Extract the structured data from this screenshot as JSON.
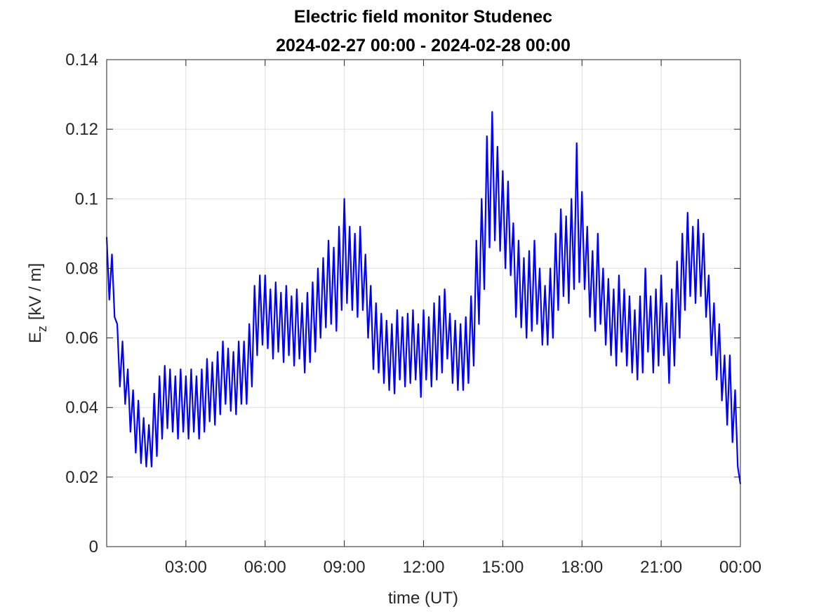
{
  "chart_data": {
    "type": "line",
    "title": "Electric field monitor Studenec",
    "subtitle": "2024-02-27 00:00 - 2024-02-28 00:00",
    "xlabel": "time (UT)",
    "ylabel": [
      "E",
      "z",
      "[kV / m]"
    ],
    "xlim": [
      0,
      24
    ],
    "ylim": [
      0,
      0.14
    ],
    "xticks": [
      {
        "value": 3,
        "label": "03:00"
      },
      {
        "value": 6,
        "label": "06:00"
      },
      {
        "value": 9,
        "label": "09:00"
      },
      {
        "value": 12,
        "label": "12:00"
      },
      {
        "value": 15,
        "label": "15:00"
      },
      {
        "value": 18,
        "label": "18:00"
      },
      {
        "value": 21,
        "label": "21:00"
      },
      {
        "value": 24,
        "label": "00:00"
      }
    ],
    "yticks": [
      0,
      0.02,
      0.04,
      0.06,
      0.08,
      0.1,
      0.12,
      0.14
    ],
    "grid": true,
    "x": [
      0,
      0.1,
      0.2,
      0.3,
      0.4,
      0.5,
      0.6,
      0.7,
      0.8,
      0.9,
      1,
      1.1,
      1.2,
      1.3,
      1.4,
      1.5,
      1.6,
      1.7,
      1.8,
      1.9,
      2,
      2.1,
      2.2,
      2.3,
      2.4,
      2.5,
      2.6,
      2.7,
      2.8,
      2.9,
      3,
      3.1,
      3.2,
      3.3,
      3.4,
      3.5,
      3.6,
      3.7,
      3.8,
      3.9,
      4,
      4.1,
      4.2,
      4.3,
      4.4,
      4.5,
      4.6,
      4.7,
      4.8,
      4.9,
      5,
      5.1,
      5.2,
      5.3,
      5.4,
      5.5,
      5.6,
      5.7,
      5.8,
      5.9,
      6,
      6.1,
      6.2,
      6.3,
      6.4,
      6.5,
      6.6,
      6.7,
      6.8,
      6.9,
      7,
      7.1,
      7.2,
      7.3,
      7.4,
      7.5,
      7.6,
      7.7,
      7.8,
      7.9,
      8,
      8.1,
      8.2,
      8.3,
      8.4,
      8.5,
      8.6,
      8.7,
      8.8,
      8.9,
      9,
      9.1,
      9.2,
      9.3,
      9.4,
      9.5,
      9.6,
      9.7,
      9.8,
      9.9,
      10,
      10.1,
      10.2,
      10.3,
      10.4,
      10.5,
      10.6,
      10.7,
      10.8,
      10.9,
      11,
      11.1,
      11.2,
      11.3,
      11.4,
      11.5,
      11.6,
      11.7,
      11.8,
      11.9,
      12,
      12.1,
      12.2,
      12.3,
      12.4,
      12.5,
      12.6,
      12.7,
      12.8,
      12.9,
      13,
      13.1,
      13.2,
      13.3,
      13.4,
      13.5,
      13.6,
      13.7,
      13.8,
      13.9,
      14,
      14.1,
      14.2,
      14.3,
      14.4,
      14.5,
      14.6,
      14.7,
      14.8,
      14.9,
      15,
      15.1,
      15.2,
      15.3,
      15.4,
      15.5,
      15.6,
      15.7,
      15.8,
      15.9,
      16,
      16.1,
      16.2,
      16.3,
      16.4,
      16.5,
      16.6,
      16.7,
      16.8,
      16.9,
      17,
      17.1,
      17.2,
      17.3,
      17.4,
      17.5,
      17.6,
      17.7,
      17.8,
      17.9,
      18,
      18.1,
      18.2,
      18.3,
      18.4,
      18.5,
      18.6,
      18.7,
      18.8,
      18.9,
      19,
      19.1,
      19.2,
      19.3,
      19.4,
      19.5,
      19.6,
      19.7,
      19.8,
      19.9,
      20,
      20.1,
      20.2,
      20.3,
      20.4,
      20.5,
      20.6,
      20.7,
      20.8,
      20.9,
      21,
      21.1,
      21.2,
      21.3,
      21.4,
      21.5,
      21.6,
      21.7,
      21.8,
      21.9,
      22,
      22.1,
      22.2,
      22.3,
      22.4,
      22.5,
      22.6,
      22.7,
      22.8,
      22.9,
      23,
      23.1,
      23.2,
      23.3,
      23.4,
      23.5,
      23.6,
      23.7,
      23.8,
      23.9,
      24
    ],
    "series": [
      {
        "color": "#0000ff",
        "values": [
          0.089,
          0.071,
          0.084,
          0.066,
          0.064,
          0.046,
          0.059,
          0.041,
          0.051,
          0.033,
          0.045,
          0.027,
          0.042,
          0.024,
          0.037,
          0.023,
          0.035,
          0.023,
          0.044,
          0.026,
          0.049,
          0.031,
          0.052,
          0.034,
          0.051,
          0.033,
          0.049,
          0.031,
          0.051,
          0.033,
          0.049,
          0.031,
          0.051,
          0.033,
          0.049,
          0.031,
          0.051,
          0.033,
          0.054,
          0.036,
          0.053,
          0.035,
          0.056,
          0.038,
          0.059,
          0.041,
          0.057,
          0.039,
          0.056,
          0.038,
          0.059,
          0.041,
          0.059,
          0.041,
          0.064,
          0.046,
          0.075,
          0.055,
          0.078,
          0.058,
          0.078,
          0.057,
          0.074,
          0.054,
          0.076,
          0.056,
          0.073,
          0.053,
          0.075,
          0.055,
          0.072,
          0.052,
          0.074,
          0.054,
          0.07,
          0.05,
          0.073,
          0.053,
          0.076,
          0.056,
          0.08,
          0.06,
          0.083,
          0.063,
          0.088,
          0.064,
          0.086,
          0.062,
          0.092,
          0.068,
          0.1,
          0.07,
          0.092,
          0.068,
          0.09,
          0.066,
          0.092,
          0.068,
          0.084,
          0.06,
          0.075,
          0.051,
          0.07,
          0.05,
          0.067,
          0.047,
          0.065,
          0.045,
          0.064,
          0.044,
          0.068,
          0.048,
          0.066,
          0.046,
          0.067,
          0.047,
          0.068,
          0.048,
          0.064,
          0.043,
          0.068,
          0.048,
          0.066,
          0.046,
          0.07,
          0.048,
          0.072,
          0.05,
          0.074,
          0.054,
          0.067,
          0.047,
          0.065,
          0.045,
          0.064,
          0.045,
          0.066,
          0.047,
          0.072,
          0.052,
          0.088,
          0.064,
          0.1,
          0.074,
          0.118,
          0.086,
          0.125,
          0.088,
          0.115,
          0.085,
          0.108,
          0.08,
          0.105,
          0.078,
          0.093,
          0.066,
          0.088,
          0.063,
          0.083,
          0.06,
          0.085,
          0.062,
          0.088,
          0.064,
          0.08,
          0.058,
          0.075,
          0.058,
          0.08,
          0.06,
          0.09,
          0.068,
          0.097,
          0.072,
          0.095,
          0.07,
          0.1,
          0.074,
          0.116,
          0.076,
          0.102,
          0.074,
          0.092,
          0.066,
          0.085,
          0.062,
          0.09,
          0.064,
          0.08,
          0.058,
          0.077,
          0.055,
          0.074,
          0.052,
          0.078,
          0.056,
          0.074,
          0.052,
          0.072,
          0.05,
          0.068,
          0.048,
          0.072,
          0.05,
          0.08,
          0.056,
          0.072,
          0.05,
          0.074,
          0.052,
          0.078,
          0.055,
          0.07,
          0.047,
          0.074,
          0.052,
          0.082,
          0.06,
          0.09,
          0.068,
          0.096,
          0.072,
          0.092,
          0.07,
          0.094,
          0.072,
          0.09,
          0.066,
          0.078,
          0.055,
          0.07,
          0.048,
          0.064,
          0.042,
          0.055,
          0.035,
          0.055,
          0.03,
          0.045,
          0.023,
          0.018
        ]
      }
    ]
  }
}
